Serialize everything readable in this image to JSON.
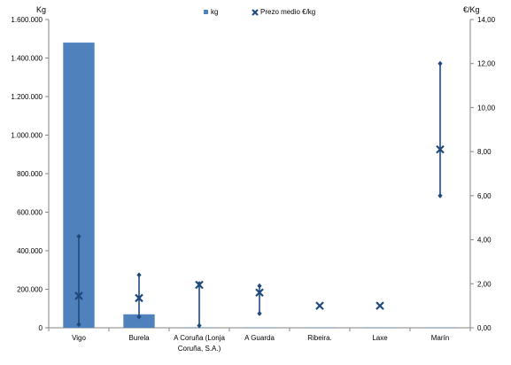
{
  "chart_data": {
    "type": "bar",
    "categories": [
      "Vigo",
      "Burela",
      "A Coruña (Lonja Coruña, S.A.)",
      "A Guarda",
      "Ribeira.",
      "Laxe",
      "Marín"
    ],
    "category_label_lines": [
      [
        "Vigo"
      ],
      [
        "Burela"
      ],
      [
        "A Coruña (Lonja",
        "Coruña, S.A.)"
      ],
      [
        "A Guarda"
      ],
      [
        "Ribeira."
      ],
      [
        "Laxe"
      ],
      [
        "Marín"
      ]
    ],
    "y_left_label": "Kg",
    "y_right_label": "€/Kg",
    "y_left_lim": [
      0,
      1600000
    ],
    "y_right_lim": [
      0,
      14
    ],
    "y_left_ticks": [
      "0",
      "200.000",
      "400.000",
      "600.000",
      "800.000",
      "1.000.000",
      "1.200.000",
      "1.400.000",
      "1.600.000"
    ],
    "y_right_ticks": [
      "0,00",
      "2,00",
      "4,00",
      "6,00",
      "8,00",
      "10,00",
      "12,00",
      "14,00"
    ],
    "series": [
      {
        "name": "kg",
        "axis": "left",
        "type": "bar",
        "color": "#4f81bd",
        "values": [
          1480000,
          70000,
          2000,
          2000,
          1500,
          1500,
          1500
        ]
      },
      {
        "name": "Prezo medio €/kg",
        "axis": "right",
        "type": "marker",
        "color": "#1f497d",
        "values": [
          1.45,
          1.35,
          1.95,
          1.6,
          1.0,
          1.0,
          8.1
        ],
        "min": [
          0.15,
          0.5,
          0.1,
          0.65,
          null,
          null,
          6.0
        ],
        "max": [
          4.15,
          2.4,
          2.0,
          1.9,
          null,
          null,
          12.0
        ]
      }
    ],
    "legend": {
      "placement": "top-center"
    },
    "grid": false
  }
}
